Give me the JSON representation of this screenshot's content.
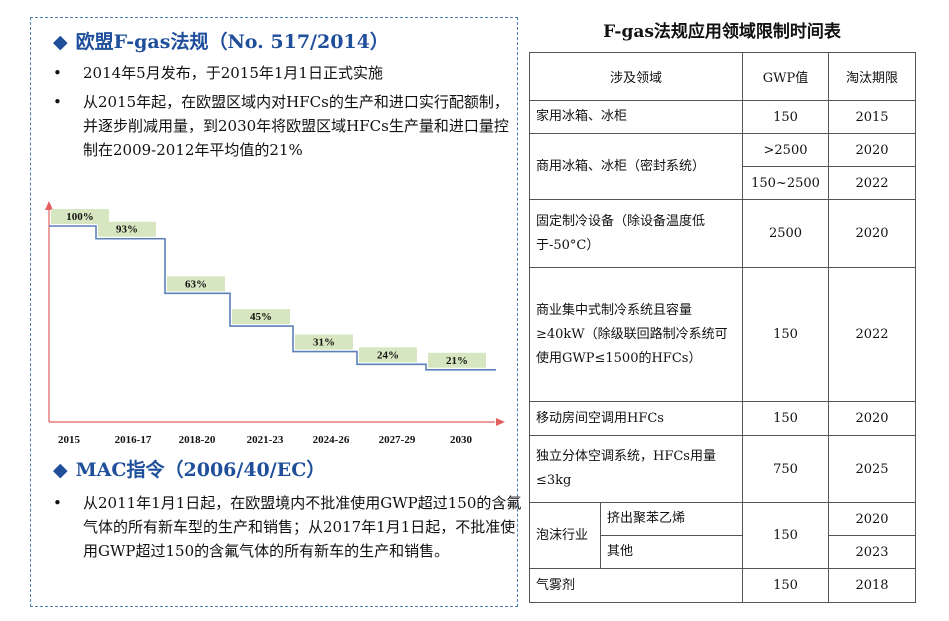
{
  "left": {
    "section1": {
      "diamond": "◆",
      "title": "欧盟F-gas法规（No. 517/2014）",
      "bullets": [
        "2014年5月发布，于2015年1月1日正式实施",
        "从2015年起，在欧盟区域内对HFCs的生产和进口实行配额制，并逐步削减用量，到2030年将欧盟区域HFCs生产量和进口量控制在2009-2012年平均值的21%"
      ]
    },
    "section2": {
      "diamond": "◆",
      "title": "MAC指令（2006/40/EC）",
      "bullets": [
        "从2011年1月1日起，在欧盟境内不批准使用GWP超过150的含氟气体的所有新车型的生产和销售；从2017年1月1日起，不批准使用GWP超过150的含氟气体的所有新车的生产和销售。"
      ]
    },
    "bullet_char": "•"
  },
  "chart_data": {
    "type": "bar",
    "categories": [
      "2015",
      "2016-17",
      "2018-20",
      "2021-23",
      "2024-26",
      "2027-29",
      "2030"
    ],
    "values": [
      100,
      93,
      63,
      45,
      31,
      24,
      21
    ],
    "labels": [
      "100%",
      "93%",
      "63%",
      "45%",
      "31%",
      "24%",
      "21%"
    ],
    "title": "",
    "xlabel": "",
    "ylabel": "",
    "ylim": [
      0,
      100
    ],
    "colors": {
      "step_line": "#5b80b8",
      "label_box": "#d6e6c0",
      "axis": "#e06060"
    },
    "grid": false
  },
  "table": {
    "title": "F-gas法规应用领域限制时间表",
    "headers": [
      "涉及领域",
      "GWP值",
      "淘汰期限"
    ],
    "rows": {
      "r1": {
        "field": "家用冰箱、冰柜",
        "gwp": "150",
        "year": "2015"
      },
      "r2": {
        "field": "商用冰箱、冰柜（密封系统）",
        "gwp_a": ">2500",
        "year_a": "2020",
        "gwp_b": "150~2500",
        "year_b": "2022"
      },
      "r3": {
        "field": "固定制冷设备（除设备温度低于-50°C）",
        "gwp": "2500",
        "year": "2020"
      },
      "r4": {
        "field": "商业集中式制冷系统且容量≥40kW（除级联回路制冷系统可使用GWP≤1500的HFCs）",
        "gwp": "150",
        "year": "2022"
      },
      "r5": {
        "field": "移动房间空调用HFCs",
        "gwp": "150",
        "year": "2020"
      },
      "r6": {
        "field": "独立分体空调系统，HFCs用量≤3kg",
        "gwp": "750",
        "year": "2025"
      },
      "r7": {
        "group": "泡沫行业",
        "sub_a": "挤出聚苯乙烯",
        "year_a": "2020",
        "gwp": "150",
        "sub_b": "其他",
        "year_b": "2023"
      },
      "r8": {
        "field": "气雾剂",
        "gwp": "150",
        "year": "2018"
      }
    }
  }
}
